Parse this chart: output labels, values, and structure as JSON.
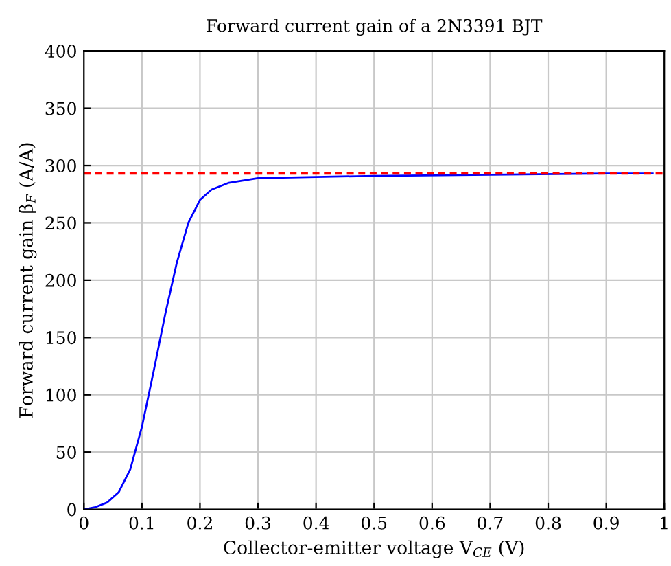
{
  "chart_data": {
    "type": "line",
    "title": "Forward current gain of a 2N3391 BJT",
    "xlabel": "Collector-emitter voltage V$_{CE}$ (V)",
    "ylabel": "Forward current gain β$_{F}$ (A/A)",
    "x": [
      0,
      0.02,
      0.04,
      0.06,
      0.08,
      0.1,
      0.12,
      0.14,
      0.16,
      0.18,
      0.2,
      0.22,
      0.25,
      0.3,
      0.4,
      0.5,
      0.7,
      0.9,
      0.98
    ],
    "series": [
      {
        "color": "#0000ff",
        "values": [
          0,
          2,
          6,
          15,
          35,
          72,
          120,
          170,
          215,
          250,
          270,
          279,
          285,
          289,
          290,
          291,
          292,
          293,
          293
        ]
      }
    ],
    "ref_lines": [
      {
        "axis": "y",
        "value": 293,
        "color": "#ff0000",
        "line_style": "dashed"
      }
    ],
    "xlim": [
      0,
      1
    ],
    "ylim": [
      0,
      400
    ],
    "xticks": [
      0,
      0.1,
      0.2,
      0.3,
      0.4,
      0.5,
      0.6,
      0.7,
      0.8,
      0.9,
      1
    ],
    "yticks": [
      0,
      50,
      100,
      150,
      200,
      250,
      300,
      350,
      400
    ],
    "grid": true,
    "line_style": "solid",
    "marker": "none"
  }
}
